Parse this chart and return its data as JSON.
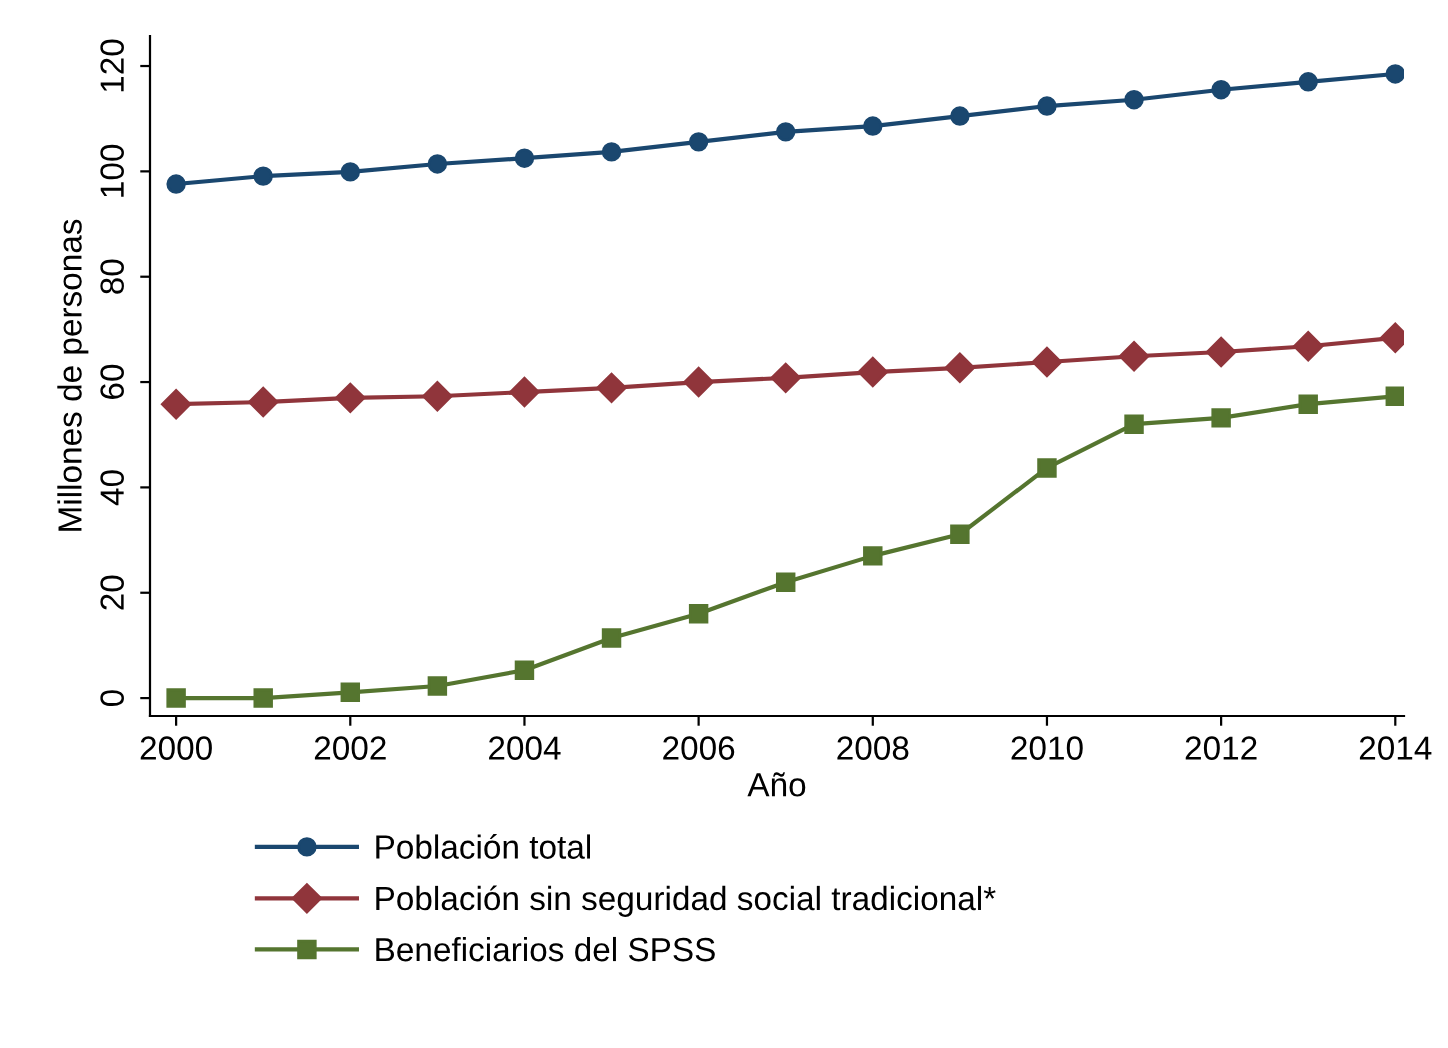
{
  "chart_data": {
    "type": "line",
    "xlabel": "Año",
    "ylabel": "Millones de personas",
    "x": [
      2000,
      2001,
      2002,
      2003,
      2004,
      2005,
      2006,
      2007,
      2008,
      2009,
      2010,
      2011,
      2012,
      2013,
      2014
    ],
    "series": [
      {
        "name": "Población total",
        "color": "#1a476f",
        "marker": "circle",
        "values": [
          97.6,
          99.1,
          99.9,
          101.4,
          102.5,
          103.7,
          105.6,
          107.5,
          108.6,
          110.5,
          112.4,
          113.6,
          115.5,
          117,
          118.5
        ]
      },
      {
        "name": "Población sin seguridad social tradicional*",
        "color": "#90353b",
        "marker": "diamond",
        "values": [
          55.8,
          56.2,
          57,
          57.3,
          58.1,
          58.9,
          60,
          60.8,
          61.9,
          62.7,
          63.8,
          64.9,
          65.7,
          66.8,
          68.4
        ]
      },
      {
        "name": "Beneficiarios del SPSS",
        "color": "#55752f",
        "marker": "square",
        "values": [
          0,
          0,
          1.1,
          2.3,
          5.3,
          11.4,
          16,
          22,
          27,
          31.1,
          43.7,
          52,
          53.2,
          55.8,
          57.3
        ]
      }
    ],
    "xlim": [
      1999.7,
      2014.1
    ],
    "ylim": [
      -3.4,
      125.7
    ],
    "xticks": [
      2000,
      2002,
      2004,
      2006,
      2008,
      2010,
      2012,
      2014
    ],
    "yticks": [
      0,
      20,
      40,
      60,
      80,
      100,
      120
    ],
    "grid": false,
    "legend": "bottom",
    "line_style": "solid"
  }
}
